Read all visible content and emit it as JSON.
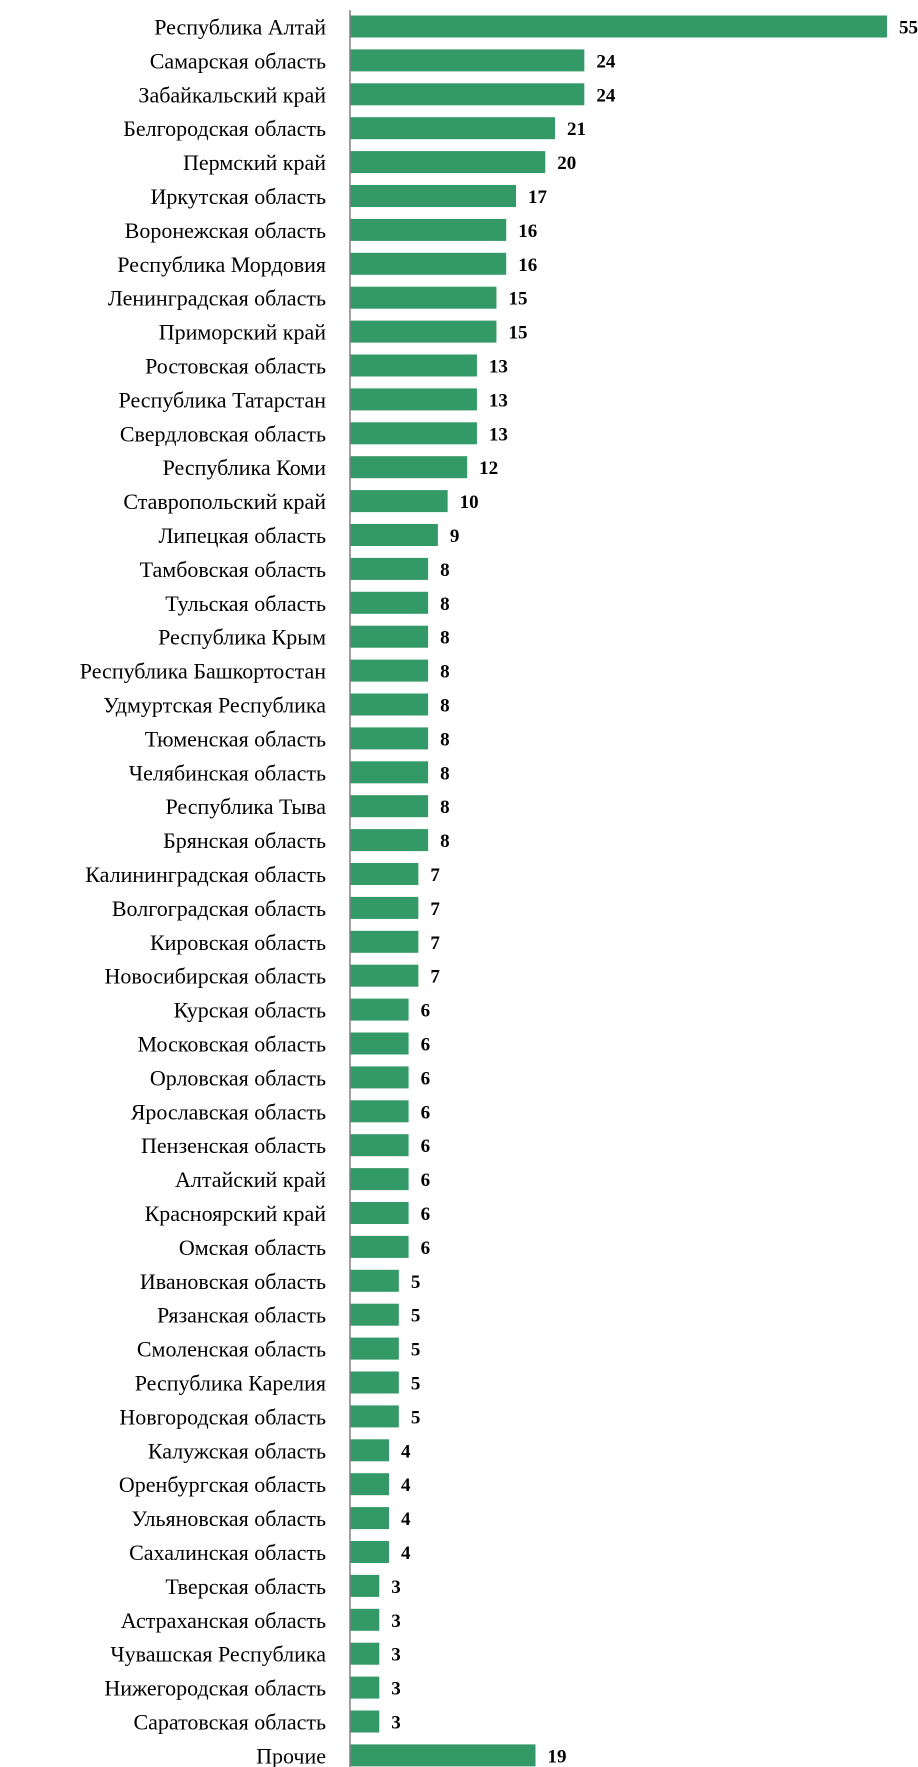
{
  "chart_data": {
    "type": "bar",
    "orientation": "horizontal",
    "bar_color": "#339966",
    "axis_color": "#808080",
    "grid": false,
    "title": "",
    "xlabel": "",
    "ylabel": "",
    "xlim": [
      0,
      55
    ],
    "categories": [
      "Республика Алтай",
      "Самарская область",
      "Забайкальский край",
      "Белгородская область",
      "Пермский край",
      "Иркутская область",
      "Воронежская область",
      "Республика Мордовия",
      "Ленинградская область",
      "Приморский край",
      "Ростовская область",
      "Республика Татарстан",
      "Свердловская область",
      "Республика Коми",
      "Ставропольский край",
      "Липецкая область",
      "Тамбовская область",
      "Тульская область",
      "Республика Крым",
      "Республика Башкортостан",
      "Удмуртская Республика",
      "Тюменская область",
      "Челябинская область",
      "Республика Тыва",
      "Брянская область",
      "Калининградская область",
      "Волгоградская область",
      "Кировская область",
      "Новосибирская область",
      "Курская область",
      "Московская область",
      "Орловская область",
      "Ярославская область",
      "Пензенская область",
      "Алтайский край",
      "Красноярский край",
      "Омская область",
      "Ивановская область",
      "Рязанская область",
      "Смоленская область",
      "Республика Карелия",
      "Новгородская область",
      "Калужская область",
      "Оренбургская область",
      "Ульяновская область",
      "Сахалинская область",
      "Тверская область",
      "Астраханская область",
      "Чувашская Республика",
      "Нижегородская область",
      "Саратовская область",
      "Прочие"
    ],
    "values": [
      55,
      24,
      24,
      21,
      20,
      17,
      16,
      16,
      15,
      15,
      13,
      13,
      13,
      12,
      10,
      9,
      8,
      8,
      8,
      8,
      8,
      8,
      8,
      8,
      8,
      7,
      7,
      7,
      7,
      6,
      6,
      6,
      6,
      6,
      6,
      6,
      6,
      5,
      5,
      5,
      5,
      5,
      4,
      4,
      4,
      4,
      3,
      3,
      3,
      3,
      3,
      19
    ]
  }
}
